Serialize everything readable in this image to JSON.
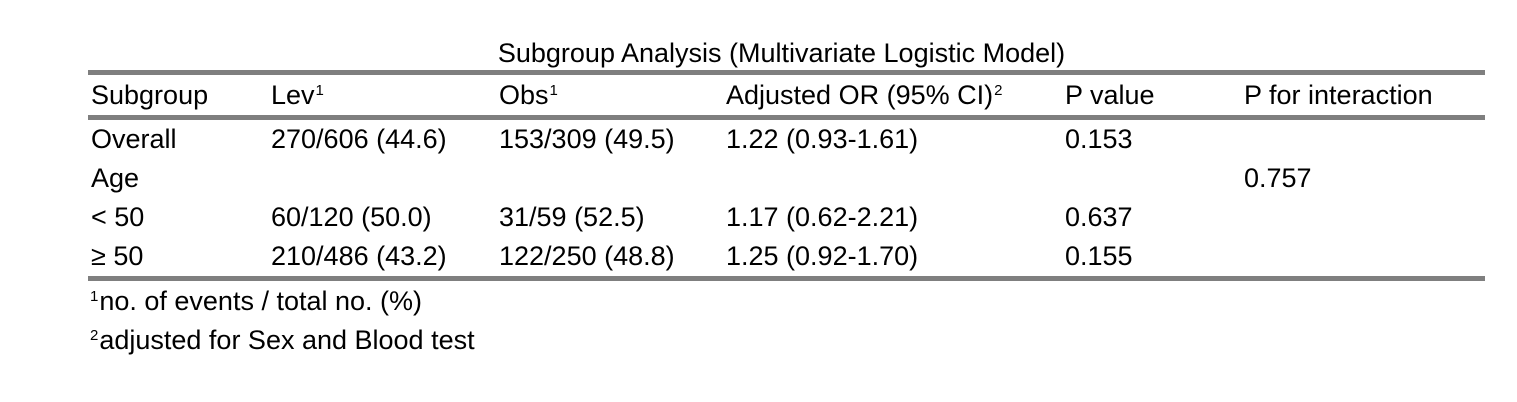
{
  "title": "Subgroup Analysis (Multivariate Logistic Model)",
  "columns": [
    {
      "label": "Subgroup",
      "mark": ""
    },
    {
      "label": "Lev",
      "mark": "1"
    },
    {
      "label": "Obs",
      "mark": "1"
    },
    {
      "label": "Adjusted OR (95% CI)",
      "mark": "2"
    },
    {
      "label": "P value",
      "mark": ""
    },
    {
      "label": "P for interaction",
      "mark": ""
    }
  ],
  "rows": [
    {
      "subgroup": "Overall",
      "lev": "270/606 (44.6)",
      "obs": "153/309 (49.5)",
      "or": "1.22 (0.93-1.61)",
      "p": "0.153",
      "p_int": ""
    },
    {
      "subgroup": "Age",
      "lev": "",
      "obs": "",
      "or": "",
      "p": "",
      "p_int": "0.757"
    },
    {
      "subgroup": "< 50",
      "lev": "60/120 (50.0)",
      "obs": "31/59 (52.5)",
      "or": "1.17 (0.62-2.21)",
      "p": "0.637",
      "p_int": ""
    },
    {
      "subgroup": "≥ 50",
      "lev": "210/486 (43.2)",
      "obs": "122/250 (48.8)",
      "or": "1.25 (0.92-1.70)",
      "p": "0.155",
      "p_int": ""
    }
  ],
  "footnotes": [
    {
      "mark": "1",
      "text": "no. of events / total no. (%)"
    },
    {
      "mark": "2",
      "text": "adjusted for Sex and Blood test"
    }
  ]
}
